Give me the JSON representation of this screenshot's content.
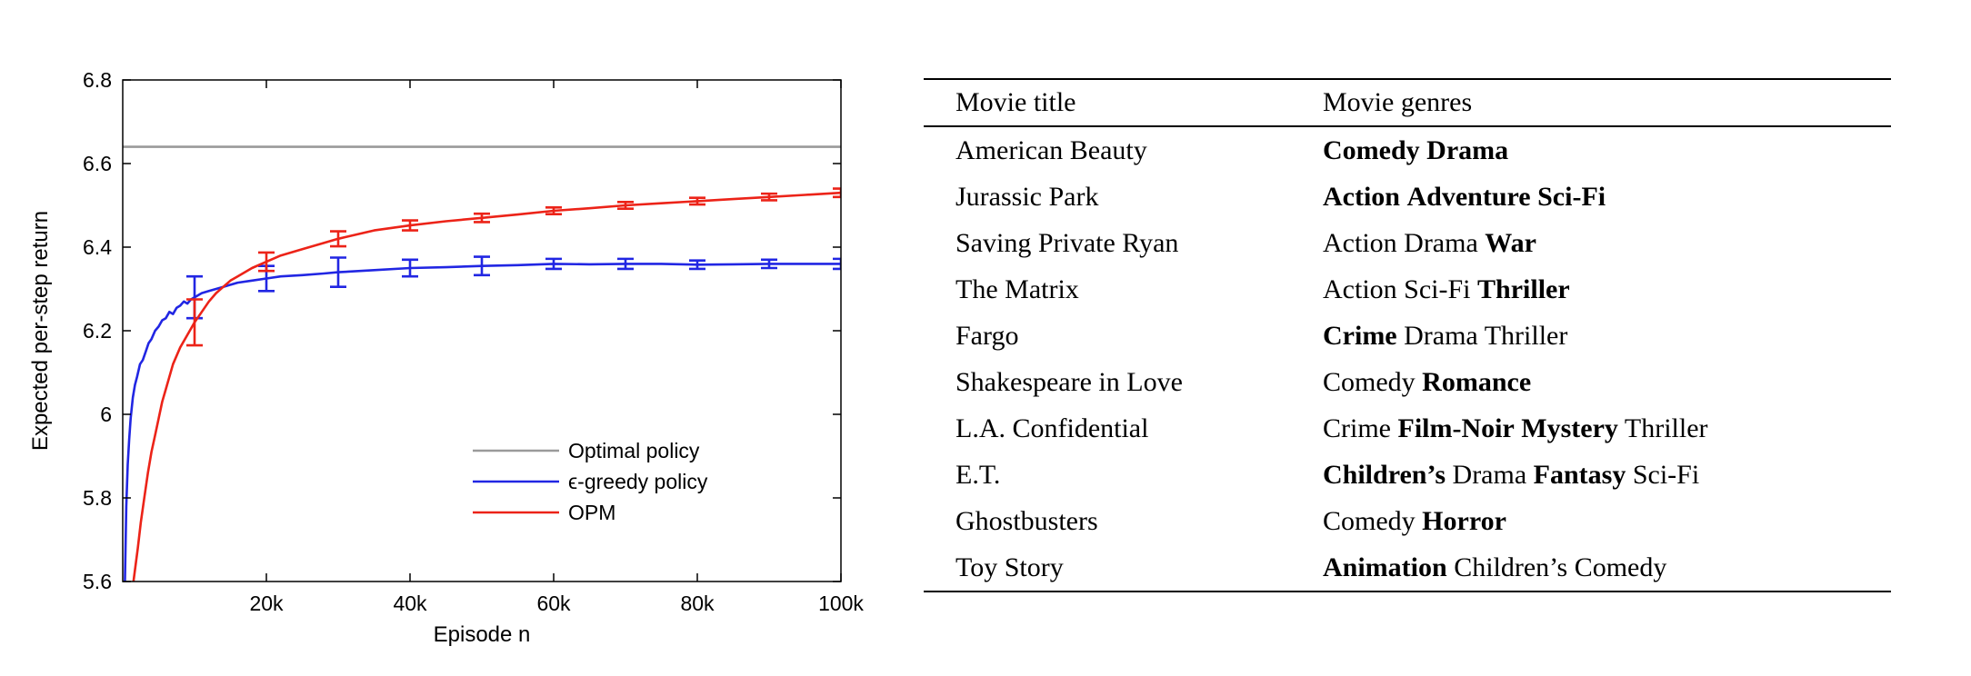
{
  "page": {
    "background": "#ffffff"
  },
  "chart_data": [
    {
      "type": "line",
      "title": "",
      "xlabel": "Episode n",
      "ylabel": "Expected per-step return",
      "xlim": [
        0,
        100000
      ],
      "ylim": [
        5.6,
        6.8
      ],
      "grid": false,
      "legend": {
        "position": "inside-lower-right",
        "border": false
      },
      "x_ticks": [
        {
          "value": 20000,
          "label": "20k"
        },
        {
          "value": 40000,
          "label": "40k"
        },
        {
          "value": 60000,
          "label": "60k"
        },
        {
          "value": 80000,
          "label": "80k"
        },
        {
          "value": 100000,
          "label": "100k"
        }
      ],
      "y_ticks": [
        {
          "value": 5.6,
          "label": "5.6"
        },
        {
          "value": 5.8,
          "label": "5.8"
        },
        {
          "value": 6.0,
          "label": "6"
        },
        {
          "value": 6.2,
          "label": "6.2"
        },
        {
          "value": 6.4,
          "label": "6.4"
        },
        {
          "value": 6.6,
          "label": "6.6"
        },
        {
          "value": 6.8,
          "label": "6.8"
        }
      ],
      "axis_color": "#000000",
      "series": [
        {
          "name": "Optimal policy",
          "color": "#9a9a9a",
          "x": [
            0,
            100000
          ],
          "y": [
            6.64,
            6.64
          ],
          "errors": []
        },
        {
          "name": "ϵ-greedy policy",
          "color": "#2126e3",
          "x": [
            300,
            500,
            700,
            900,
            1100,
            1400,
            1700,
            2000,
            2400,
            2800,
            3200,
            3600,
            4000,
            4500,
            5000,
            5500,
            6000,
            6500,
            7000,
            7500,
            8000,
            8500,
            9000,
            9500,
            10000,
            11000,
            12000,
            13000,
            14000,
            15000,
            16000,
            18000,
            20000,
            22000,
            25000,
            28000,
            30000,
            35000,
            40000,
            45000,
            50000,
            55000,
            60000,
            65000,
            70000,
            75000,
            80000,
            85000,
            90000,
            95000,
            100000
          ],
          "y": [
            5.6,
            5.78,
            5.88,
            5.94,
            5.99,
            6.04,
            6.07,
            6.09,
            6.12,
            6.13,
            6.15,
            6.17,
            6.18,
            6.2,
            6.21,
            6.225,
            6.23,
            6.245,
            6.24,
            6.255,
            6.26,
            6.27,
            6.265,
            6.275,
            6.28,
            6.29,
            6.295,
            6.3,
            6.305,
            6.31,
            6.315,
            6.32,
            6.325,
            6.33,
            6.333,
            6.337,
            6.34,
            6.345,
            6.35,
            6.352,
            6.355,
            6.357,
            6.36,
            6.359,
            6.36,
            6.36,
            6.358,
            6.359,
            6.36,
            6.36,
            6.36
          ],
          "errors": [
            [
              10000,
              6.28,
              0.05
            ],
            [
              20000,
              6.325,
              0.03
            ],
            [
              30000,
              6.34,
              0.035
            ],
            [
              40000,
              6.35,
              0.02
            ],
            [
              50000,
              6.355,
              0.022
            ],
            [
              60000,
              6.36,
              0.012
            ],
            [
              70000,
              6.36,
              0.012
            ],
            [
              80000,
              6.358,
              0.01
            ],
            [
              90000,
              6.36,
              0.01
            ],
            [
              100000,
              6.36,
              0.012
            ]
          ]
        },
        {
          "name": "OPM",
          "color": "#ec2318",
          "x": [
            1500,
            1800,
            2100,
            2500,
            3000,
            3500,
            4000,
            4500,
            5000,
            5500,
            6000,
            7000,
            8000,
            9000,
            10000,
            11000,
            12000,
            13000,
            14000,
            15000,
            16000,
            18000,
            20000,
            22000,
            25000,
            28000,
            30000,
            35000,
            40000,
            45000,
            50000,
            55000,
            60000,
            65000,
            70000,
            75000,
            80000,
            85000,
            90000,
            95000,
            100000
          ],
          "y": [
            5.6,
            5.64,
            5.68,
            5.74,
            5.8,
            5.86,
            5.91,
            5.95,
            5.99,
            6.03,
            6.06,
            6.12,
            6.16,
            6.19,
            6.22,
            6.245,
            6.27,
            6.29,
            6.305,
            6.32,
            6.33,
            6.35,
            6.365,
            6.38,
            6.395,
            6.41,
            6.42,
            6.44,
            6.452,
            6.462,
            6.47,
            6.478,
            6.487,
            6.493,
            6.5,
            6.505,
            6.51,
            6.515,
            6.52,
            6.525,
            6.53
          ],
          "errors": [
            [
              10000,
              6.22,
              0.055
            ],
            [
              20000,
              6.365,
              0.022
            ],
            [
              30000,
              6.42,
              0.018
            ],
            [
              40000,
              6.452,
              0.012
            ],
            [
              50000,
              6.47,
              0.01
            ],
            [
              60000,
              6.487,
              0.008
            ],
            [
              70000,
              6.5,
              0.008
            ],
            [
              80000,
              6.51,
              0.008
            ],
            [
              90000,
              6.52,
              0.008
            ],
            [
              100000,
              6.53,
              0.01
            ]
          ]
        }
      ]
    },
    {
      "type": "table",
      "columns": [
        "Movie title",
        "Movie genres"
      ],
      "rows": [
        {
          "title": "American Beauty",
          "genres": [
            {
              "t": "Comedy",
              "b": true
            },
            {
              "t": "Drama",
              "b": true
            }
          ]
        },
        {
          "title": "Jurassic Park",
          "genres": [
            {
              "t": "Action",
              "b": true
            },
            {
              "t": "Adventure",
              "b": true
            },
            {
              "t": "Sci-Fi",
              "b": true
            }
          ]
        },
        {
          "title": "Saving Private Ryan",
          "genres": [
            {
              "t": "Action",
              "b": false
            },
            {
              "t": "Drama",
              "b": false
            },
            {
              "t": "War",
              "b": true
            }
          ]
        },
        {
          "title": "The Matrix",
          "genres": [
            {
              "t": "Action",
              "b": false
            },
            {
              "t": "Sci-Fi",
              "b": false
            },
            {
              "t": "Thriller",
              "b": true
            }
          ]
        },
        {
          "title": "Fargo",
          "genres": [
            {
              "t": "Crime",
              "b": true
            },
            {
              "t": "Drama",
              "b": false
            },
            {
              "t": "Thriller",
              "b": false
            }
          ]
        },
        {
          "title": "Shakespeare in Love",
          "genres": [
            {
              "t": "Comedy",
              "b": false
            },
            {
              "t": "Romance",
              "b": true
            }
          ]
        },
        {
          "title": "L.A. Confidential",
          "genres": [
            {
              "t": "Crime",
              "b": false
            },
            {
              "t": "Film-Noir",
              "b": true
            },
            {
              "t": "Mystery",
              "b": true
            },
            {
              "t": "Thriller",
              "b": false
            }
          ]
        },
        {
          "title": "E.T.",
          "genres": [
            {
              "t": "Children’s",
              "b": true
            },
            {
              "t": "Drama",
              "b": false
            },
            {
              "t": "Fantasy",
              "b": true
            },
            {
              "t": "Sci-Fi",
              "b": false
            }
          ]
        },
        {
          "title": "Ghostbusters",
          "genres": [
            {
              "t": "Comedy",
              "b": false
            },
            {
              "t": "Horror",
              "b": true
            }
          ]
        },
        {
          "title": "Toy Story",
          "genres": [
            {
              "t": "Animation",
              "b": true
            },
            {
              "t": "Children’s",
              "b": false
            },
            {
              "t": "Comedy",
              "b": false
            }
          ]
        }
      ]
    }
  ]
}
